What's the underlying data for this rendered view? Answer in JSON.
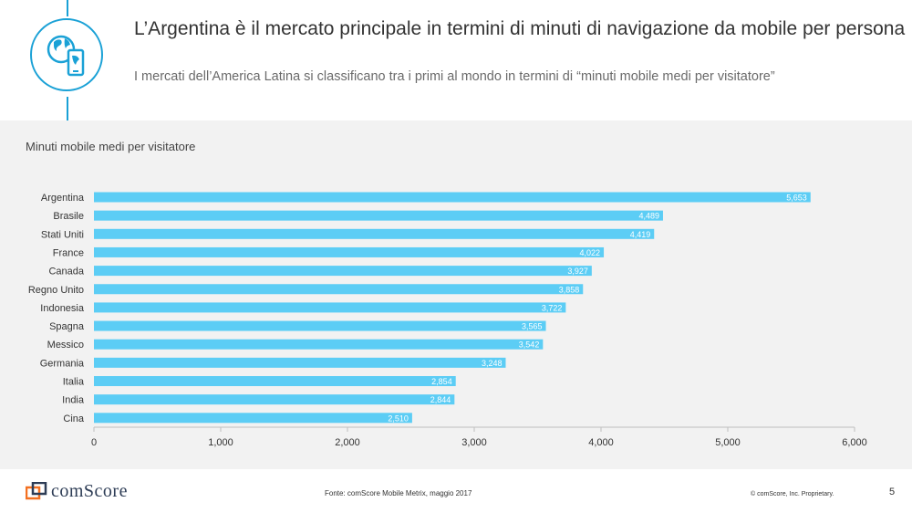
{
  "header": {
    "title": "L’Argentina è il mercato principale in termini di minuti di navigazione da mobile per persona",
    "subtitle": "I mercati dell’America Latina si classificano tra i primi al mondo in termini di “minuti mobile medi per visitatore”",
    "icon": "globe-phone-icon"
  },
  "chart_data": {
    "type": "bar",
    "orientation": "horizontal",
    "title": "Minuti mobile medi per visitatore",
    "categories": [
      "Argentina",
      "Brasile",
      "Stati Uniti",
      "France",
      "Canada",
      "Regno Unito",
      "Indonesia",
      "Spagna",
      "Messico",
      "Germania",
      "Italia",
      "India",
      "Cina"
    ],
    "values": [
      5653,
      4489,
      4419,
      4022,
      3927,
      3858,
      3722,
      3565,
      3542,
      3248,
      2854,
      2844,
      2510
    ],
    "value_labels": [
      "5,653",
      "4,489",
      "4,419",
      "4,022",
      "3,927",
      "3,858",
      "3,722",
      "3,565",
      "3,542",
      "3,248",
      "2,854",
      "2,844",
      "2,510"
    ],
    "xlim": [
      0,
      6000
    ],
    "x_ticks": [
      0,
      1000,
      2000,
      3000,
      4000,
      5000,
      6000
    ],
    "x_tick_labels": [
      "0",
      "1,000",
      "2,000",
      "3,000",
      "4,000",
      "5,000",
      "6,000"
    ],
    "bar_color": "#5ccdf5",
    "grid": false
  },
  "footer": {
    "logo_text": "comScore",
    "source": "Fonte: comScore Mobile Metrix, maggio 2017",
    "copyright": "© comScore, Inc. Proprietary.",
    "page_number": "5"
  },
  "colors": {
    "accent": "#1aa1d6",
    "panel": "#f2f2f2",
    "logo_orange": "#f37021"
  }
}
